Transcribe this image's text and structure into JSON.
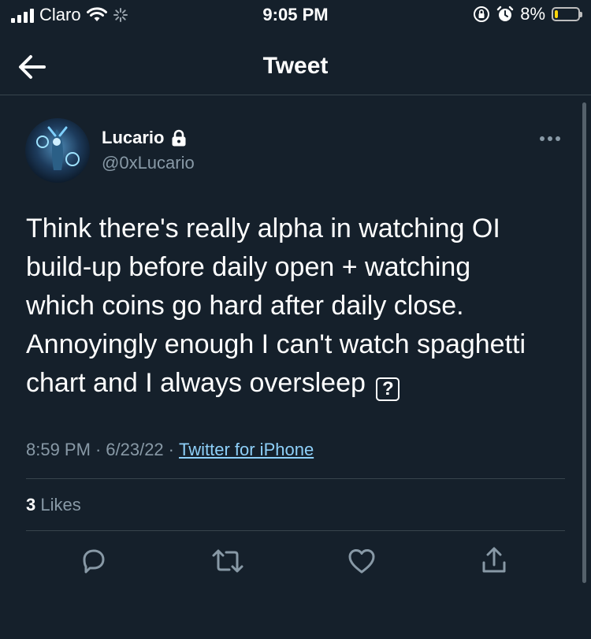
{
  "status_bar": {
    "carrier": "Claro",
    "time": "9:05 PM",
    "battery_percent": "8%",
    "battery_level": 0.08
  },
  "header": {
    "title": "Tweet"
  },
  "author": {
    "name": "Lucario",
    "handle": "@0xLucario",
    "protected": true
  },
  "tweet": {
    "text": "Think there's really alpha in watching OI\nbuild-up before daily open + watching\nwhich coins go hard after daily close.\nAnnoyingly enough I can't watch spaghetti\nchart and I always oversleep ",
    "emoji_fallback": "?",
    "time": "8:59 PM",
    "date": "6/23/22",
    "separator": "·",
    "source": "Twitter for iPhone"
  },
  "stats": {
    "likes_count": "3",
    "likes_label": "Likes"
  },
  "actions": {
    "icons": [
      "reply-icon",
      "retweet-icon",
      "like-icon",
      "share-icon"
    ]
  },
  "colors": {
    "background": "#15202b",
    "muted_text": "#8899a6",
    "link": "#8ed0f9",
    "divider": "#38444d",
    "battery_warning": "#ffd60a"
  }
}
